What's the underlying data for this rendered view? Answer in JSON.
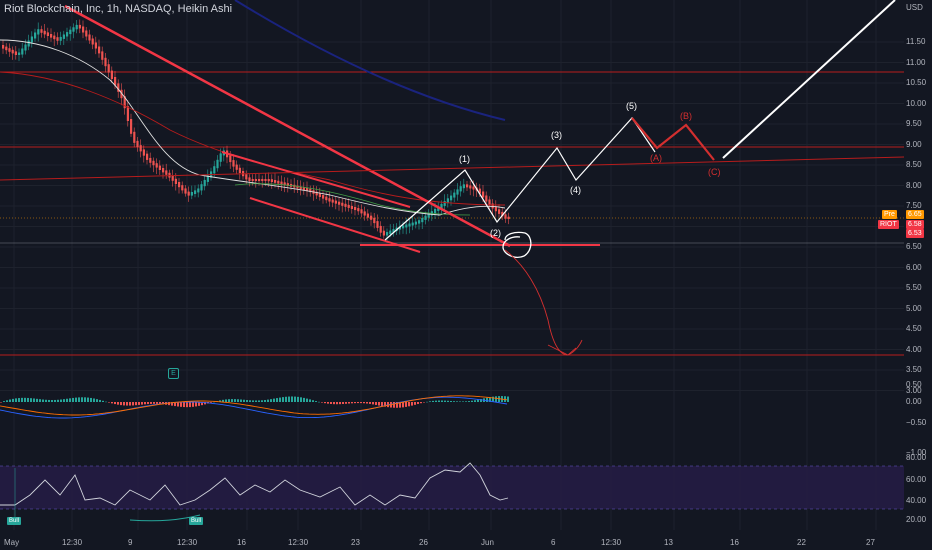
{
  "header": {
    "title": "Riot Blockchain, Inc, 1h, NASDAQ, Heikin Ashi"
  },
  "axis": {
    "currency": "USD",
    "price_ticks": [
      "11.50",
      "11.00",
      "10.50",
      "10.00",
      "9.50",
      "9.00",
      "8.50",
      "8.00",
      "7.50",
      "7.00",
      "6.50",
      "6.00",
      "5.50",
      "5.00",
      "4.50",
      "4.00",
      "3.50",
      "3.00"
    ],
    "macd_ticks": [
      "0.50",
      "0.00",
      "−0.50",
      "−1.00"
    ],
    "rsi_ticks": [
      "80.00",
      "60.00",
      "40.00",
      "20.00"
    ],
    "time_ticks": [
      "May",
      "12:30",
      "9",
      "12:30",
      "16",
      "12:30",
      "23",
      "26",
      "Jun",
      "6",
      "12:30",
      "13",
      "16",
      "22",
      "27"
    ]
  },
  "price_badges": {
    "pre_label": "Pre",
    "pre_value": "6.65",
    "symbol": "RIOT",
    "last_value": "6.58",
    "low_value": "6.53"
  },
  "waves_white": [
    "(1)",
    "(2)",
    "(3)",
    "(4)",
    "(5)"
  ],
  "waves_red": [
    "(A)",
    "(B)",
    "(C)"
  ],
  "indicator": {
    "bull_label": "Bull",
    "event_icon": "E"
  },
  "colors": {
    "background": "#131722",
    "up": "#26a69a",
    "down": "#ef5350",
    "trendline": "#f23645",
    "projection": "#ffffff",
    "corrective": "#d32f2f",
    "rsi_band": "#2a1f4a",
    "pre_badge": "#ff9800",
    "riot_badge": "#f23645"
  }
}
